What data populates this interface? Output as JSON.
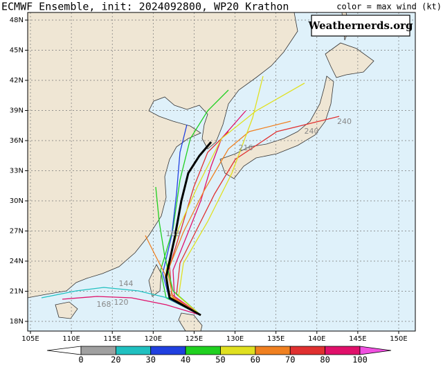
{
  "map": {
    "title": "ECMWF Ensemble, init: 2024092800, WP20 Krathon",
    "legend_title": "color = max wind (kt)",
    "watermark": "Weathernerds.org",
    "lat_ticks": [
      {
        "value": 48,
        "label": "48N"
      },
      {
        "value": 45,
        "label": "45N"
      },
      {
        "value": 42,
        "label": "42N"
      },
      {
        "value": 39,
        "label": "39N"
      },
      {
        "value": 36,
        "label": "36N"
      },
      {
        "value": 33,
        "label": "33N"
      },
      {
        "value": 30,
        "label": "30N"
      },
      {
        "value": 27,
        "label": "27N"
      },
      {
        "value": 24,
        "label": "24N"
      },
      {
        "value": 21,
        "label": "21N"
      },
      {
        "value": 18,
        "label": "18N"
      }
    ],
    "lon_ticks": [
      {
        "value": 105,
        "label": "105E"
      },
      {
        "value": 110,
        "label": "110E"
      },
      {
        "value": 115,
        "label": "115E"
      },
      {
        "value": 120,
        "label": "120E"
      },
      {
        "value": 125,
        "label": "125E"
      },
      {
        "value": 130,
        "label": "130E"
      },
      {
        "value": 135,
        "label": "135E"
      },
      {
        "value": 140,
        "label": "140E"
      },
      {
        "value": 145,
        "label": "145E"
      },
      {
        "value": 150,
        "label": "150E"
      }
    ],
    "colorbar": {
      "ticks": [
        0,
        20,
        30,
        40,
        50,
        60,
        70,
        80,
        100
      ],
      "colors": [
        "#ffffff",
        "#a0a0a0",
        "#20c0c0",
        "#2040e0",
        "#20d020",
        "#e0e020",
        "#f08020",
        "#e03030",
        "#e0106a",
        "#f050e0"
      ]
    },
    "hour_labels": [
      "240",
      "240",
      "216",
      "168",
      "168",
      "144",
      "120"
    ]
  }
}
